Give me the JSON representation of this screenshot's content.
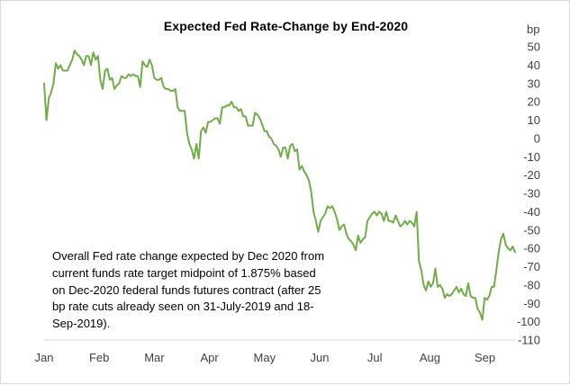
{
  "chart_data": {
    "type": "line",
    "title": "Expected Fed Rate-Change by End-2020",
    "ylabel": "bp",
    "ylim": [
      -110,
      50
    ],
    "yticks": [
      50,
      40,
      30,
      20,
      10,
      0,
      -10,
      -20,
      -30,
      -40,
      -50,
      -60,
      -70,
      -80,
      -90,
      -100,
      -110
    ],
    "y_axis_side": "right",
    "x_axis_position": "bottom",
    "grid": false,
    "legend": "none",
    "line_color": "#70ad47",
    "months": [
      "Jan",
      "Feb",
      "Mar",
      "Apr",
      "May",
      "Jun",
      "Jul",
      "Aug",
      "Sep"
    ],
    "x_unit": "trading day (0 = start of Jan)",
    "series": [
      {
        "values": [
          30,
          10,
          22,
          25,
          30,
          41,
          38,
          40,
          37,
          37,
          37,
          40,
          43,
          48,
          46,
          45,
          43,
          40,
          45,
          45,
          40,
          47,
          43,
          45,
          32,
          27,
          37,
          38,
          32,
          33,
          27,
          29,
          30,
          34,
          33,
          33,
          35,
          34,
          35,
          34,
          34,
          28,
          42,
          40,
          39,
          43,
          40,
          33,
          32,
          32,
          33,
          28,
          27,
          27,
          26,
          26,
          27,
          17,
          15,
          15,
          15,
          3,
          -3,
          -6,
          -11,
          -3,
          -11,
          4,
          6,
          3,
          9,
          9,
          10,
          11,
          11,
          8,
          17,
          17,
          18,
          18,
          20,
          17,
          17,
          15,
          16,
          12,
          12,
          7,
          7,
          7,
          14,
          13,
          11,
          8,
          4,
          4,
          1,
          0,
          -3,
          -4,
          -6,
          -10,
          -5,
          -5,
          -11,
          -4,
          -3,
          -7,
          -6,
          -17,
          -15,
          -18,
          -20,
          -23,
          -29,
          -40,
          -45,
          -51,
          -45,
          -43,
          -41,
          -37,
          -38,
          -37,
          -40,
          -44,
          -50,
          -48,
          -47,
          -52,
          -55,
          -56,
          -58,
          -61,
          -53,
          -57,
          -55,
          -54,
          -45,
          -43,
          -41,
          -40,
          -42,
          -40,
          -41,
          -45,
          -40,
          -45,
          -45,
          -46,
          -42,
          -45,
          -48,
          -47,
          -45,
          -47,
          -45,
          -46,
          -48,
          -40,
          -67,
          -72,
          -80,
          -83,
          -78,
          -81,
          -79,
          -71,
          -81,
          -80,
          -82,
          -87,
          -85,
          -86,
          -85,
          -83,
          -81,
          -84,
          -82,
          -85,
          -86,
          -79,
          -86,
          -87,
          -87,
          -93,
          -95,
          -99,
          -87,
          -88,
          -86,
          -81,
          -81,
          -72,
          -62,
          -55,
          -52,
          -58,
          -60,
          -61,
          -59,
          -62
        ]
      }
    ],
    "annotation": "Overall Fed rate change expected by Dec 2020 from current funds rate target midpoint of 1.875% based on Dec-2020 federal funds futures contract (after 25 bp rate cuts already seen on 31-July-2019 and 18-Sep-2019)."
  }
}
